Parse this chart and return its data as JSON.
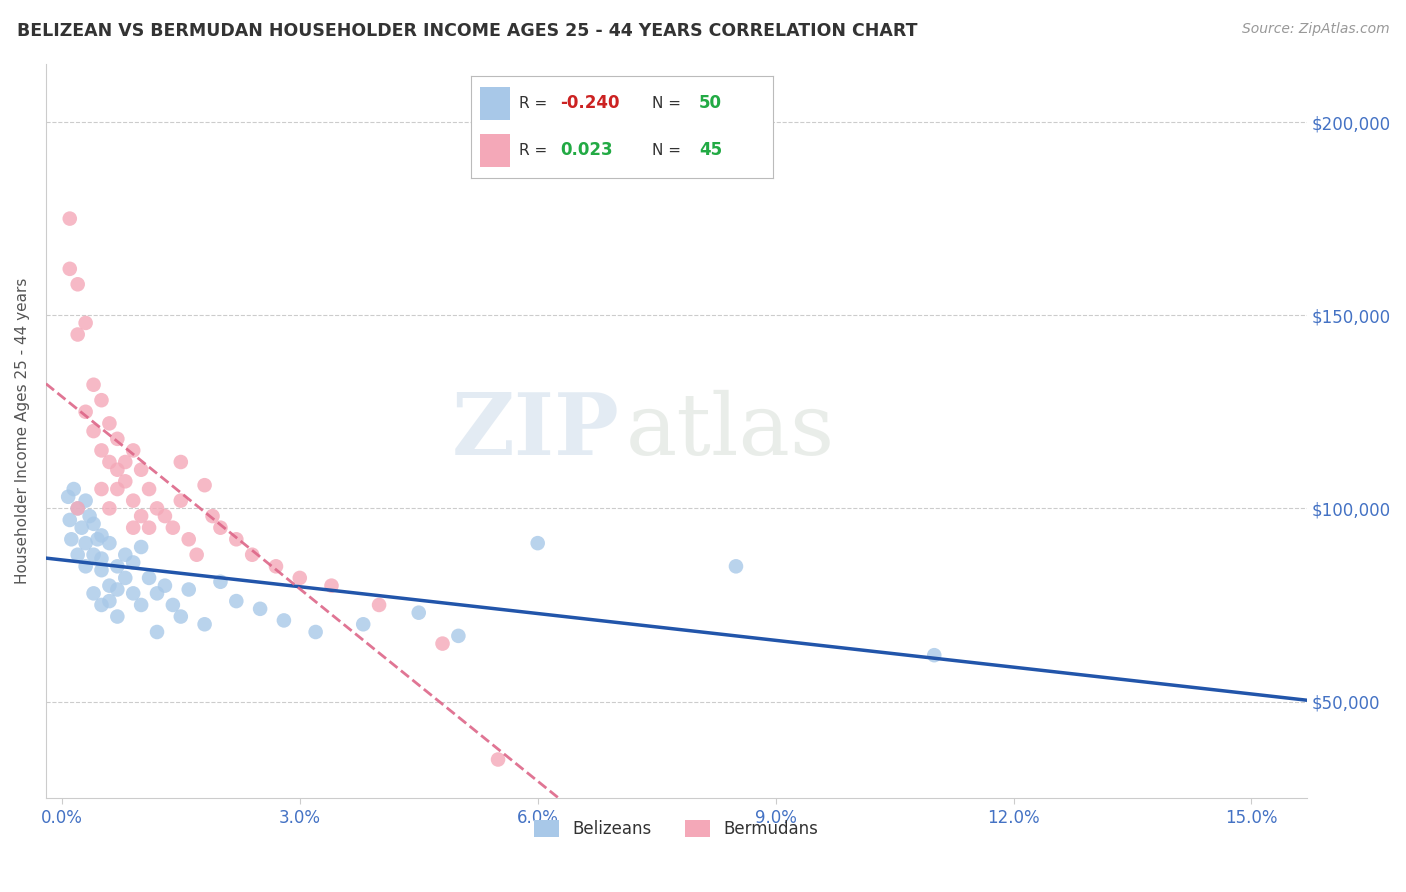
{
  "title": "BELIZEAN VS BERMUDAN HOUSEHOLDER INCOME AGES 25 - 44 YEARS CORRELATION CHART",
  "source": "Source: ZipAtlas.com",
  "ylabel": "Householder Income Ages 25 - 44 years",
  "xlabel_ticks": [
    0.0,
    0.03,
    0.06,
    0.09,
    0.12,
    0.15
  ],
  "xlabel_labels": [
    "0.0%",
    "3.0%",
    "6.0%",
    "9.0%",
    "12.0%",
    "15.0%"
  ],
  "ytick_values": [
    50000,
    100000,
    150000,
    200000
  ],
  "ytick_labels": [
    "$50,000",
    "$100,000",
    "$150,000",
    "$200,000"
  ],
  "ylim": [
    25000,
    215000
  ],
  "xlim": [
    -0.002,
    0.157
  ],
  "watermark_text": "ZIP",
  "watermark_text2": "atlas",
  "belizean_color": "#a8c8e8",
  "bermudan_color": "#f4a8b8",
  "belizean_line_color": "#2255aa",
  "bermudan_line_color": "#dd6688",
  "bg_color": "#ffffff",
  "grid_color": "#cccccc",
  "title_color": "#333333",
  "axis_label_color": "#555555",
  "tick_color": "#4472c4",
  "legend_R_neg_color": "#cc2222",
  "legend_R_pos_color": "#22aa44",
  "legend_N_color": "#22aa44",
  "belizean_x": [
    0.0008,
    0.001,
    0.0012,
    0.0015,
    0.002,
    0.002,
    0.0025,
    0.003,
    0.003,
    0.003,
    0.0035,
    0.004,
    0.004,
    0.004,
    0.0045,
    0.005,
    0.005,
    0.005,
    0.005,
    0.006,
    0.006,
    0.006,
    0.007,
    0.007,
    0.007,
    0.008,
    0.008,
    0.009,
    0.009,
    0.01,
    0.01,
    0.011,
    0.012,
    0.012,
    0.013,
    0.014,
    0.015,
    0.016,
    0.018,
    0.02,
    0.022,
    0.025,
    0.028,
    0.032,
    0.038,
    0.045,
    0.05,
    0.06,
    0.085,
    0.11
  ],
  "belizean_y": [
    103000,
    97000,
    92000,
    105000,
    100000,
    88000,
    95000,
    102000,
    91000,
    85000,
    98000,
    88000,
    96000,
    78000,
    92000,
    84000,
    93000,
    75000,
    87000,
    91000,
    80000,
    76000,
    85000,
    79000,
    72000,
    88000,
    82000,
    86000,
    78000,
    90000,
    75000,
    82000,
    78000,
    68000,
    80000,
    75000,
    72000,
    79000,
    70000,
    81000,
    76000,
    74000,
    71000,
    68000,
    70000,
    73000,
    67000,
    91000,
    85000,
    62000
  ],
  "bermudan_x": [
    0.001,
    0.001,
    0.002,
    0.002,
    0.003,
    0.003,
    0.004,
    0.004,
    0.005,
    0.005,
    0.005,
    0.006,
    0.006,
    0.006,
    0.007,
    0.007,
    0.007,
    0.008,
    0.008,
    0.009,
    0.009,
    0.009,
    0.01,
    0.01,
    0.011,
    0.011,
    0.012,
    0.013,
    0.014,
    0.015,
    0.016,
    0.017,
    0.018,
    0.019,
    0.02,
    0.022,
    0.024,
    0.027,
    0.03,
    0.034,
    0.04,
    0.048,
    0.055,
    0.002,
    0.015
  ],
  "bermudan_y": [
    162000,
    175000,
    158000,
    145000,
    148000,
    125000,
    120000,
    132000,
    128000,
    115000,
    105000,
    122000,
    112000,
    100000,
    118000,
    110000,
    105000,
    112000,
    107000,
    115000,
    102000,
    95000,
    110000,
    98000,
    105000,
    95000,
    100000,
    98000,
    95000,
    102000,
    92000,
    88000,
    106000,
    98000,
    95000,
    92000,
    88000,
    85000,
    82000,
    80000,
    75000,
    65000,
    35000,
    100000,
    112000
  ]
}
